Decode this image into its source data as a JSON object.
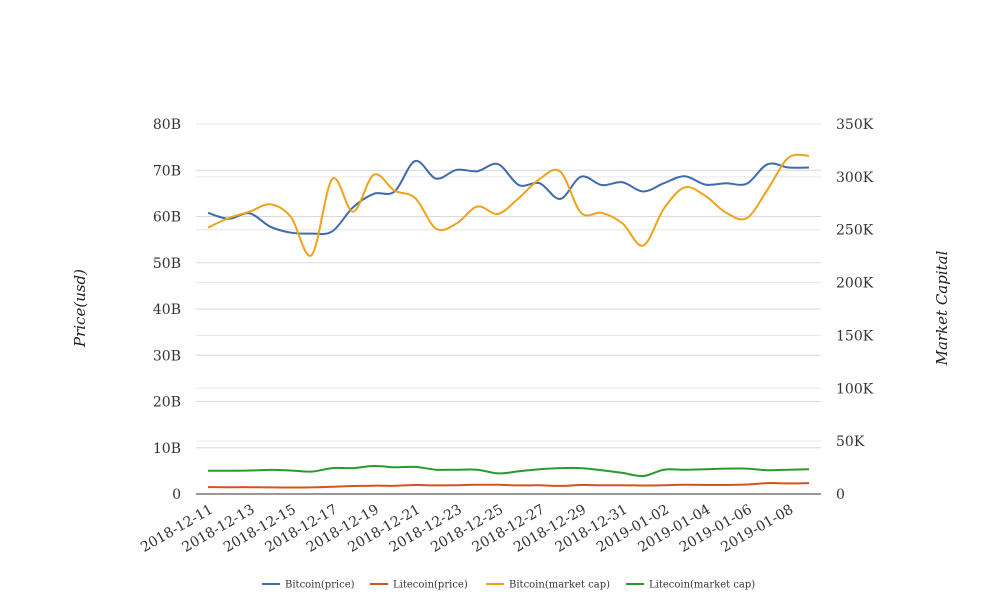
{
  "chart_data": {
    "type": "line",
    "title": "",
    "ylabel": "Price(usd)",
    "y2label": "Market Capital",
    "ylim": [
      0,
      80000000000
    ],
    "y2lim": [
      0,
      350000
    ],
    "y_ticks": [
      "0",
      "10B",
      "20B",
      "30B",
      "40B",
      "50B",
      "60B",
      "70B",
      "80B"
    ],
    "y2_ticks": [
      "0",
      "50K",
      "100K",
      "150K",
      "200K",
      "250K",
      "300K",
      "350K"
    ],
    "x_ticks": [
      "2018-12-11",
      "2018-12-13",
      "2018-12-15",
      "2018-12-17",
      "2018-12-19",
      "2018-12-21",
      "2018-12-23",
      "2018-12-25",
      "2018-12-27",
      "2018-12-29",
      "2018-12-31",
      "2019-01-02",
      "2019-01-04",
      "2019-01-06",
      "2019-01-08"
    ],
    "x": [
      "2018-12-11",
      "2018-12-12",
      "2018-12-13",
      "2018-12-14",
      "2018-12-15",
      "2018-12-16",
      "2018-12-17",
      "2018-12-18",
      "2018-12-19",
      "2018-12-20",
      "2018-12-21",
      "2018-12-22",
      "2018-12-23",
      "2018-12-24",
      "2018-12-25",
      "2018-12-26",
      "2018-12-27",
      "2018-12-28",
      "2018-12-29",
      "2018-12-30",
      "2018-12-31",
      "2019-01-01",
      "2019-01-02",
      "2019-01-03",
      "2019-01-04",
      "2019-01-05",
      "2019-01-06",
      "2019-01-07",
      "2019-01-08",
      "2019-01-09"
    ],
    "grid": true,
    "legend_position": "bottom",
    "series": [
      {
        "name": "Bitcoin(price)",
        "color": "#3e6aaf",
        "axis": "left",
        "values": [
          60800000000,
          59500000000,
          60700000000,
          57800000000,
          56500000000,
          56300000000,
          56800000000,
          62000000000,
          64900000000,
          65400000000,
          72000000000,
          68200000000,
          70100000000,
          69800000000,
          71300000000,
          66800000000,
          67200000000,
          63800000000,
          68600000000,
          66800000000,
          67400000000,
          65400000000,
          67200000000,
          68700000000,
          66900000000,
          67200000000,
          67100000000,
          71300000000,
          70600000000,
          70600000000
        ]
      },
      {
        "name": "Litecoin(price)",
        "color": "#d5541e",
        "axis": "left",
        "values": [
          1500000000,
          1450000000,
          1480000000,
          1420000000,
          1400000000,
          1420000000,
          1550000000,
          1720000000,
          1800000000,
          1780000000,
          1950000000,
          1850000000,
          1900000000,
          2000000000,
          2000000000,
          1850000000,
          1880000000,
          1750000000,
          1950000000,
          1900000000,
          1900000000,
          1830000000,
          1900000000,
          2000000000,
          1950000000,
          1950000000,
          2050000000,
          2350000000,
          2300000000,
          2350000000
        ]
      },
      {
        "name": "Bitcoin(market cap)",
        "color": "#f0a21a",
        "axis": "right",
        "values": [
          252000,
          261000,
          267000,
          274000,
          262000,
          226000,
          298000,
          267000,
          302000,
          287000,
          280000,
          251000,
          256000,
          272000,
          265000,
          280000,
          298000,
          305000,
          266000,
          266000,
          256000,
          235000,
          270000,
          290000,
          282000,
          266000,
          261000,
          288000,
          318000,
          320000
        ]
      },
      {
        "name": "Litecoin(market cap)",
        "color": "#2a9a2a",
        "axis": "right",
        "values": [
          22000,
          22000,
          22200,
          22800,
          22200,
          21200,
          24500,
          24500,
          26500,
          25300,
          25600,
          23000,
          23000,
          23000,
          19500,
          21500,
          23500,
          24500,
          24500,
          22500,
          20000,
          17000,
          23000,
          23000,
          23500,
          24000,
          24000,
          22500,
          23000,
          23500
        ]
      }
    ]
  }
}
